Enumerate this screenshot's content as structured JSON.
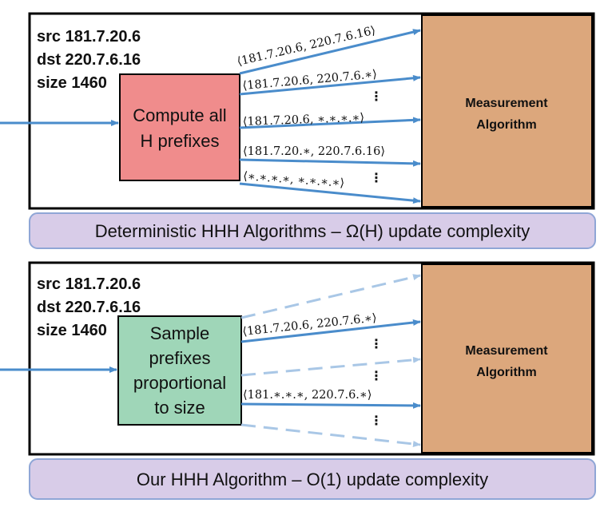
{
  "top_panel": {
    "header_lines": [
      "src 181.7.20.6",
      "dst 220.7.6.16",
      "size 1460"
    ],
    "process_box_lines": [
      "Compute all",
      "H prefixes"
    ],
    "process_box_color": "#f08c8c",
    "measurement_lines": [
      "Measurement",
      "Algorithm"
    ],
    "measurement_color": "#dca77c",
    "arrow_labels": [
      "⟨181.7.20.6, 220.7.6.16⟩",
      "⟨181.7.20.6, 220.7.6.∗⟩",
      "⟨181.7.20.6, ∗.∗.∗.∗⟩",
      "⟨181.7.20.∗, 220.7.6.16⟩",
      "⟨∗.∗.∗.∗, ∗.∗.∗.∗⟩"
    ],
    "ellipsis": "⋮",
    "caption": "Deterministic HHH Algorithms – Ω(H) update complexity"
  },
  "bottom_panel": {
    "header_lines": [
      "src 181.7.20.6",
      "dst 220.7.6.16",
      "size 1460"
    ],
    "process_box_lines": [
      "Sample",
      "prefixes",
      "proportional",
      "to size"
    ],
    "process_box_color": "#9fd6b8",
    "measurement_lines": [
      "Measurement",
      "Algorithm"
    ],
    "measurement_color": "#dca77c",
    "arrow_labels": [
      "⟨181.7.20.6, 220.7.6.∗⟩",
      "⟨181.∗.∗.∗, 220.7.6.∗⟩"
    ],
    "ellipsis": "⋮",
    "caption": "Our HHH Algorithm – O(1) update complexity"
  },
  "colors": {
    "arrow": "#4a8ccb",
    "arrow_dashed": "#a9c7e6",
    "caption_fill": "#d8cce8",
    "caption_border": "#8fa6d6",
    "panel_border": "#000000"
  }
}
